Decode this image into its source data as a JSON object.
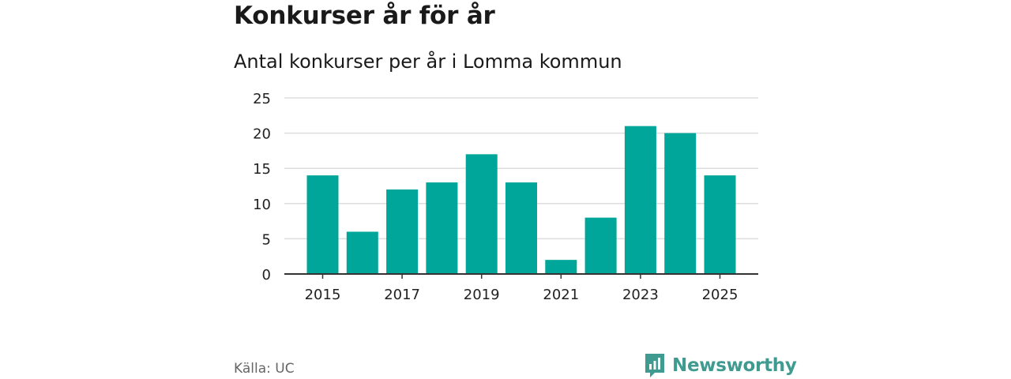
{
  "title": "Konkurser år för år",
  "subtitle": "Antal konkurser per år i Lomma kommun",
  "source": "Källa: UC",
  "brand": {
    "name": "Newsworthy",
    "color": "#3f9a90",
    "icon": "newsworthy-logo-icon"
  },
  "colors": {
    "bar": "#00a69a",
    "grid": "#dddddd",
    "axis": "#333333"
  },
  "chart_data": {
    "type": "bar",
    "title": "Antal konkurser per år i Lomma kommun",
    "xlabel": "",
    "ylabel": "",
    "categories": [
      "2015",
      "2016",
      "2017",
      "2018",
      "2019",
      "2020",
      "2021",
      "2022",
      "2023",
      "2024",
      "2025"
    ],
    "values": [
      14,
      6,
      12,
      13,
      17,
      13,
      2,
      8,
      21,
      20,
      14
    ],
    "x_tick_labels": [
      "2015",
      "2017",
      "2019",
      "2021",
      "2023",
      "2025"
    ],
    "y_ticks": [
      0,
      5,
      10,
      15,
      20,
      25
    ],
    "ylim": [
      0,
      25
    ],
    "grid": true
  }
}
